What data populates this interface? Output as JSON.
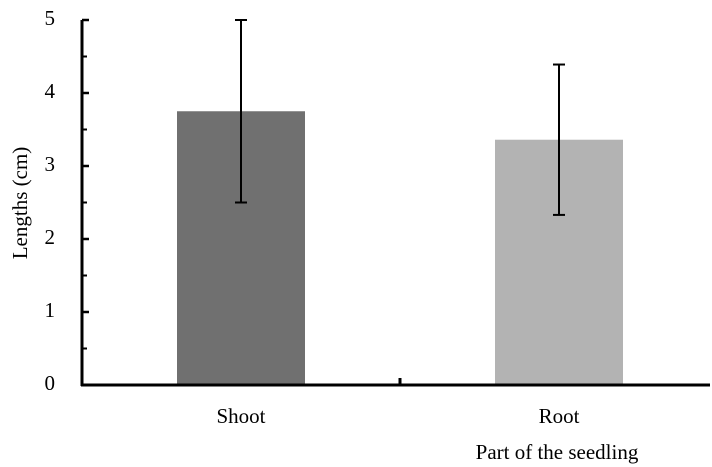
{
  "chart_data": {
    "type": "bar",
    "x_label": "Part of the seedling",
    "y_label": "Lengths (cm)",
    "categories": [
      "Shoot",
      "Root"
    ],
    "values": [
      3.75,
      3.36
    ],
    "errors": [
      1.25,
      1.03
    ],
    "colors": [
      "#707070",
      "#b3b3b3"
    ],
    "ylim": [
      0,
      5
    ],
    "yticks": [
      0,
      1,
      2,
      3,
      4,
      5
    ],
    "grid": false
  }
}
